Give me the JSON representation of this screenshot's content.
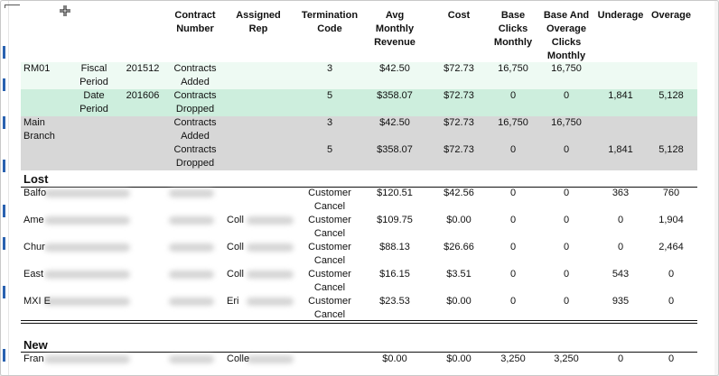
{
  "headers": [
    {
      "label": "Contract Number",
      "left": 0
    },
    {
      "label": "Assigned Rep",
      "left": 0
    },
    {
      "label": "Termination Code",
      "left": 0
    },
    {
      "label": "Avg Monthly Revenue",
      "left": 0
    },
    {
      "label": "Cost",
      "left": 0
    },
    {
      "label": "Base Clicks Monthly",
      "left": 0
    },
    {
      "label": "Base And Overage Clicks Monthly",
      "left": 0
    },
    {
      "label": "Underage",
      "left": 0
    },
    {
      "label": "Overage",
      "left": 0
    }
  ],
  "group_rows": [
    {
      "c0": "RM01",
      "c1": "Fiscal Period",
      "c2": "201512",
      "c3": "Contracts Added",
      "term": "3",
      "rev": "$42.50",
      "cost": "$72.73",
      "base": "16,750",
      "boc": "16,750",
      "under": "",
      "over": "",
      "bg": "#eefaf3"
    },
    {
      "c0": "",
      "c1": "Date Period",
      "c2": "201606",
      "c3": "Contracts Dropped",
      "term": "5",
      "rev": "$358.07",
      "cost": "$72.73",
      "base": "0",
      "boc": "0",
      "under": "1,841",
      "over": "5,128",
      "bg": "#cdeedd"
    },
    {
      "c0": "Main Branch",
      "c1": "",
      "c2": "",
      "c3": "Contracts Added",
      "term": "3",
      "rev": "$42.50",
      "cost": "$72.73",
      "base": "16,750",
      "boc": "16,750",
      "under": "",
      "over": "",
      "bg": "#d7d7d7"
    },
    {
      "c0": "",
      "c1": "",
      "c2": "",
      "c3": "Contracts Dropped",
      "term": "5",
      "rev": "$358.07",
      "cost": "$72.73",
      "base": "0",
      "boc": "0",
      "under": "1,841",
      "over": "5,128",
      "bg": "#d7d7d7"
    }
  ],
  "lost": {
    "title": "Lost",
    "rows": [
      {
        "name": "Balfo",
        "rep": "",
        "term": "Customer Cancel",
        "rev": "$120.51",
        "cost": "$42.56",
        "base": "0",
        "boc": "0",
        "under": "363",
        "over": "760"
      },
      {
        "name": "Ame",
        "rep": "Coll",
        "term": "Customer Cancel",
        "rev": "$109.75",
        "cost": "$0.00",
        "base": "0",
        "boc": "0",
        "under": "0",
        "over": "1,904"
      },
      {
        "name": "Chur",
        "rep": "Coll",
        "term": "Customer Cancel",
        "rev": "$88.13",
        "cost": "$26.66",
        "base": "0",
        "boc": "0",
        "under": "0",
        "over": "2,464"
      },
      {
        "name": "East",
        "rep": "Coll",
        "term": "Customer Cancel",
        "rev": "$16.15",
        "cost": "$3.51",
        "base": "0",
        "boc": "0",
        "under": "543",
        "over": "0"
      },
      {
        "name": "MXI E",
        "rep": "Eri",
        "term": "Customer Cancel",
        "rev": "$23.53",
        "cost": "$0.00",
        "base": "0",
        "boc": "0",
        "under": "935",
        "over": "0"
      }
    ]
  },
  "new": {
    "title": "New",
    "rows": [
      {
        "name": "Fran",
        "rep": "Colle",
        "term": "",
        "rev": "$0.00",
        "cost": "$0.00",
        "base": "3,250",
        "boc": "3,250",
        "under": "0",
        "over": "0"
      }
    ]
  },
  "colors": {
    "row_green_light": "#eefaf3",
    "row_green": "#cdeedd",
    "row_gray": "#d7d7d7",
    "scroll_marker": "#2a62b0"
  },
  "icons": {
    "cursor": "move-cursor-icon"
  }
}
